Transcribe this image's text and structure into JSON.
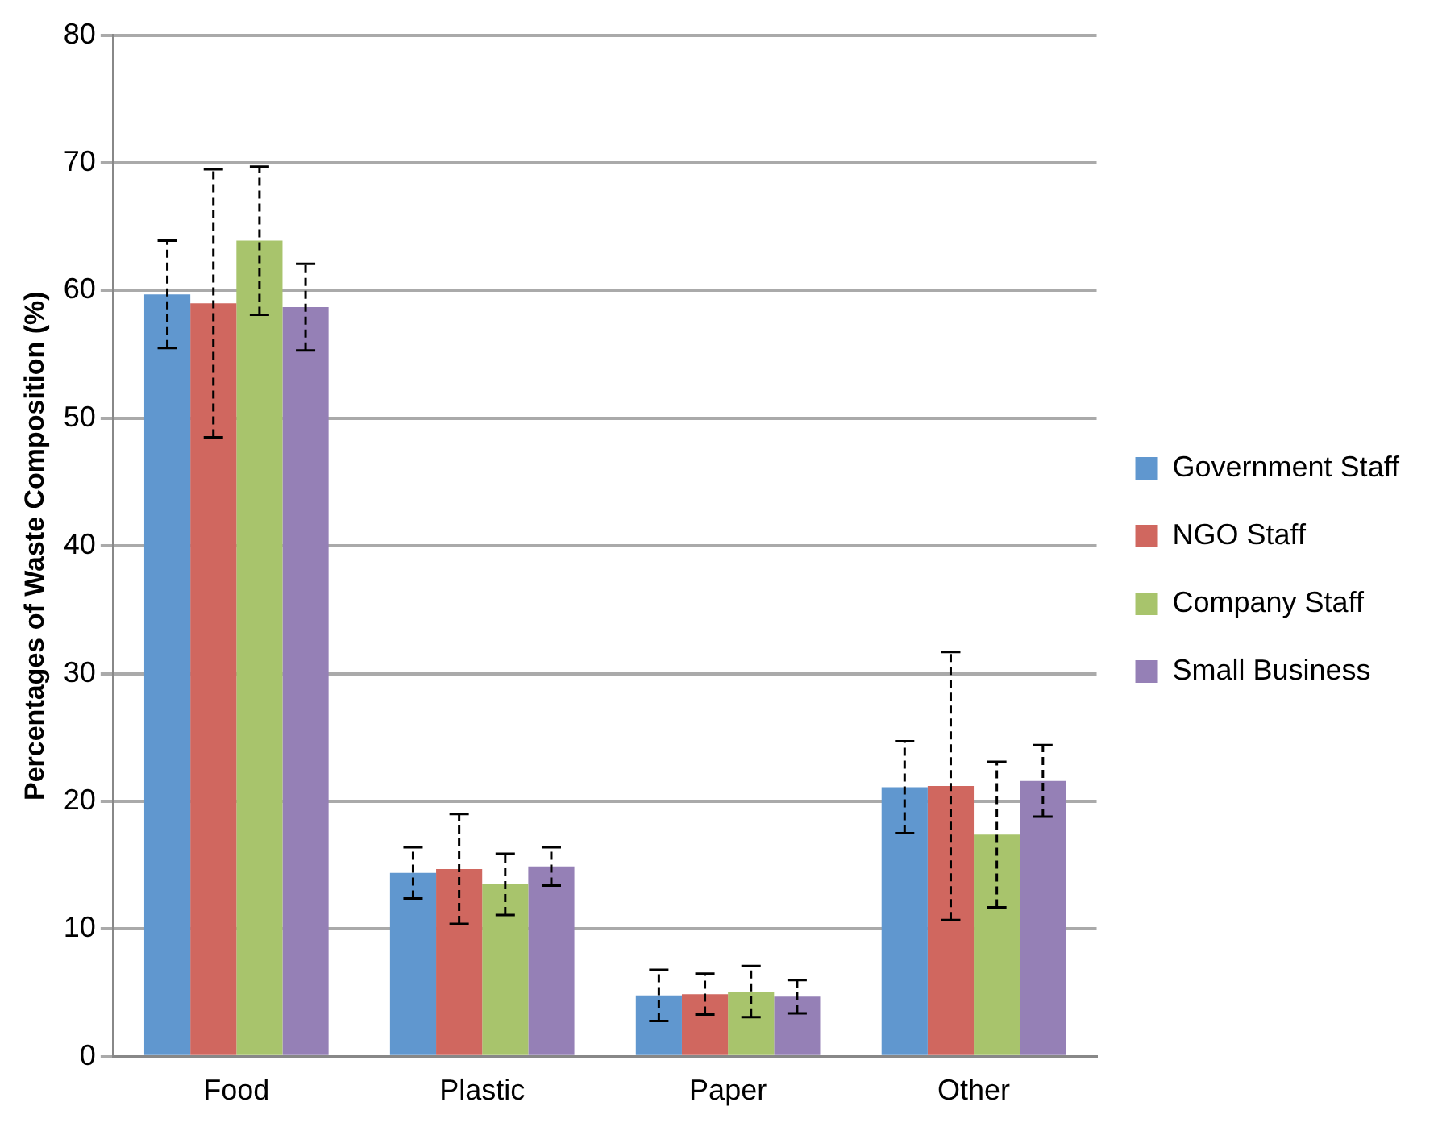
{
  "chart_data": {
    "type": "bar",
    "ylabel": "Percentages of Waste Composition (%)",
    "categories": [
      "Food",
      "Plastic",
      "Paper",
      "Other"
    ],
    "series": [
      {
        "name": "Government Staff",
        "color": "#6097cf",
        "values": [
          59.7,
          14.4,
          4.8,
          21.1
        ],
        "errors": [
          4.2,
          2.0,
          2.0,
          3.6
        ]
      },
      {
        "name": "NGO Staff",
        "color": "#d0675f",
        "values": [
          59.0,
          14.7,
          4.9,
          21.2
        ],
        "errors": [
          10.5,
          4.3,
          1.6,
          10.5
        ]
      },
      {
        "name": "Company Staff",
        "color": "#a8c46c",
        "values": [
          63.9,
          13.5,
          5.1,
          17.4
        ],
        "errors": [
          5.8,
          2.4,
          2.0,
          5.7
        ]
      },
      {
        "name": "Small Business",
        "color": "#9580b6",
        "values": [
          58.7,
          14.9,
          4.7,
          21.6
        ],
        "errors": [
          3.4,
          1.5,
          1.3,
          2.8
        ]
      }
    ],
    "ylim": [
      0,
      80
    ],
    "yticks": [
      0,
      10,
      20,
      30,
      40,
      50,
      60,
      70,
      80
    ],
    "grid": "y",
    "legend": "right"
  }
}
